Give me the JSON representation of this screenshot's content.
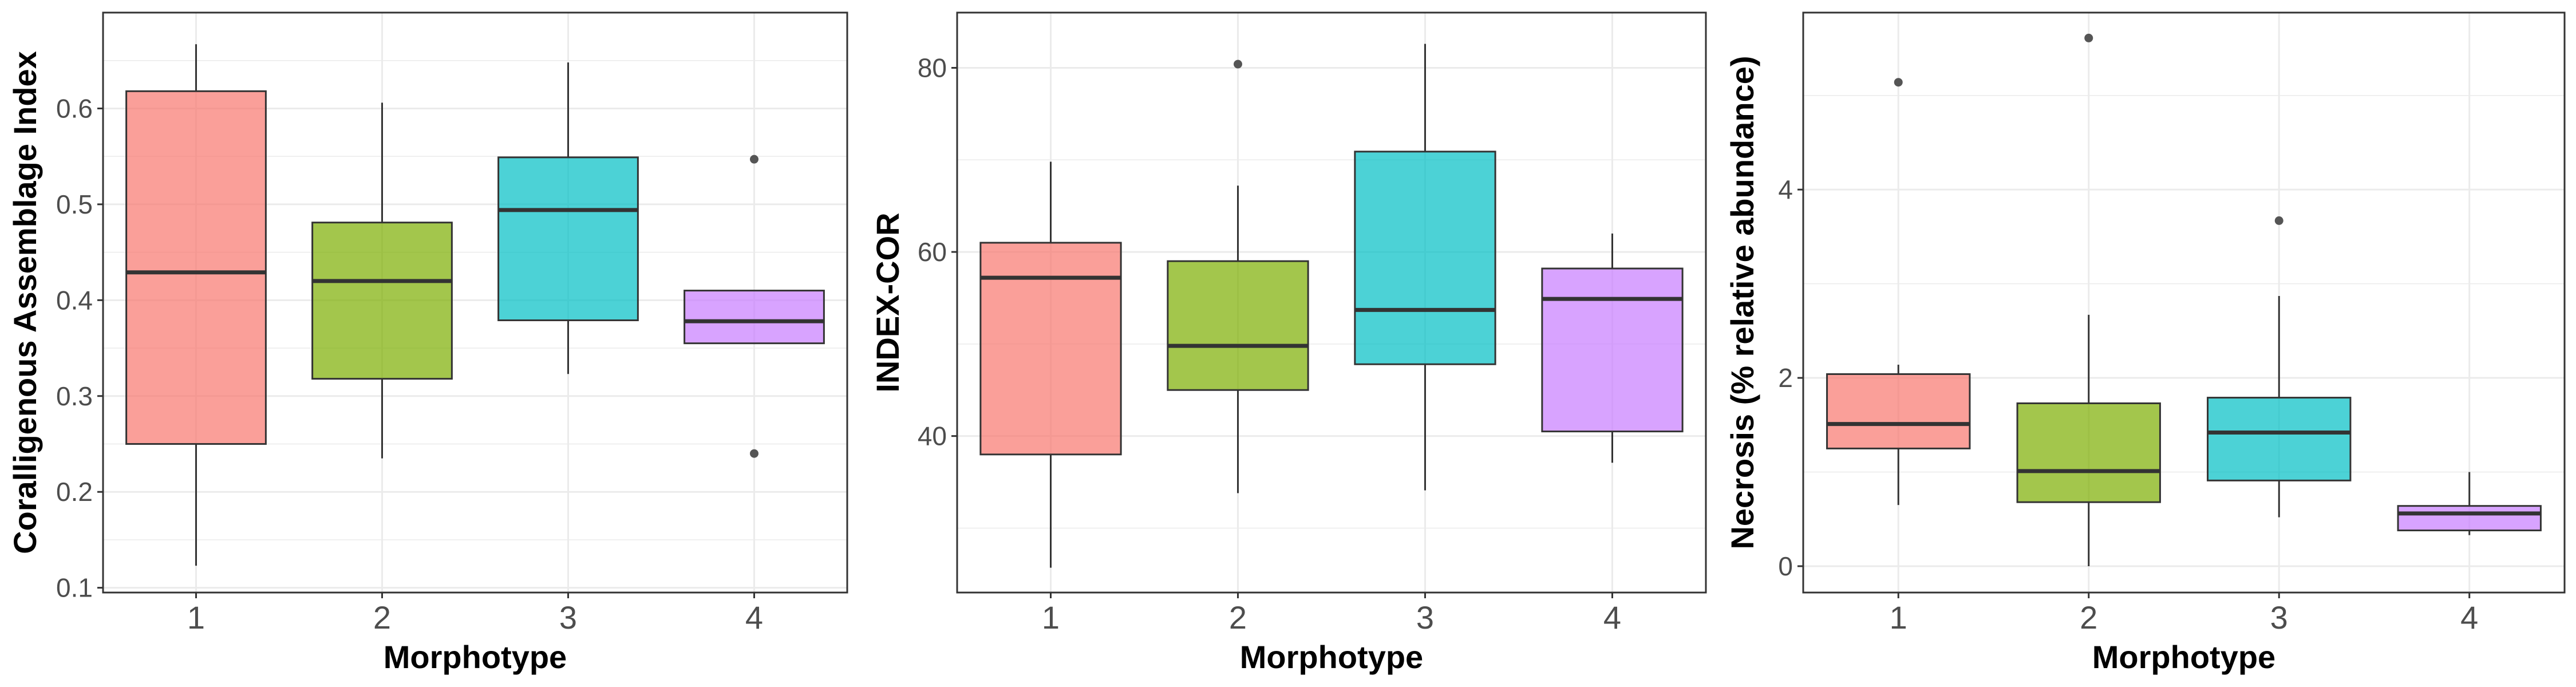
{
  "colors": {
    "1": "#F8766D",
    "2": "#7CAE00",
    "3": "#00BFC4",
    "4": "#C77CFF",
    "panel_border": "#333333",
    "grid": "#ebebeb",
    "median": "#333333",
    "outlier": "#555555"
  },
  "chart_data": [
    {
      "type": "box",
      "xlabel": "Morphotype",
      "ylabel": "Coralligenous Assemblage Index",
      "categories": [
        "1",
        "2",
        "3",
        "4"
      ],
      "ylim": [
        0.095,
        0.7
      ],
      "yticks": [
        0.1,
        0.2,
        0.3,
        0.4,
        0.5,
        0.6
      ],
      "ytick_labels": [
        "0.1",
        "0.2",
        "0.3",
        "0.4",
        "0.5",
        "0.6"
      ],
      "grid": true,
      "boxes": [
        {
          "category": "1",
          "whisker_low": 0.123,
          "q1": 0.25,
          "median": 0.429,
          "q3": 0.618,
          "whisker_high": 0.667,
          "outliers": []
        },
        {
          "category": "2",
          "whisker_low": 0.235,
          "q1": 0.318,
          "median": 0.42,
          "q3": 0.481,
          "whisker_high": 0.606,
          "outliers": []
        },
        {
          "category": "3",
          "whisker_low": 0.323,
          "q1": 0.379,
          "median": 0.494,
          "q3": 0.549,
          "whisker_high": 0.648,
          "outliers": []
        },
        {
          "category": "4",
          "whisker_low": 0.355,
          "q1": 0.355,
          "median": 0.378,
          "q3": 0.41,
          "whisker_high": 0.41,
          "outliers": [
            0.547,
            0.24
          ]
        }
      ]
    },
    {
      "type": "box",
      "xlabel": "Morphotype",
      "ylabel": "INDEX-COR",
      "categories": [
        "1",
        "2",
        "3",
        "4"
      ],
      "ylim": [
        23,
        86
      ],
      "yticks": [
        40,
        60,
        80
      ],
      "ytick_labels": [
        "40",
        "60",
        "80"
      ],
      "grid": true,
      "boxes": [
        {
          "category": "1",
          "whisker_low": 25.7,
          "q1": 38,
          "median": 57.2,
          "q3": 61,
          "whisker_high": 69.8,
          "outliers": []
        },
        {
          "category": "2",
          "whisker_low": 33.8,
          "q1": 45,
          "median": 49.8,
          "q3": 59,
          "whisker_high": 67.2,
          "outliers": [
            80.4
          ]
        },
        {
          "category": "3",
          "whisker_low": 34.1,
          "q1": 47.8,
          "median": 53.7,
          "q3": 70.9,
          "whisker_high": 82.6,
          "outliers": []
        },
        {
          "category": "4",
          "whisker_low": 37.1,
          "q1": 40.5,
          "median": 54.9,
          "q3": 58.2,
          "whisker_high": 62,
          "outliers": []
        }
      ]
    },
    {
      "type": "box",
      "xlabel": "Morphotype",
      "ylabel": "Necrosis (% relative abundance)",
      "categories": [
        "1",
        "2",
        "3",
        "4"
      ],
      "ylim": [
        -0.28,
        5.88
      ],
      "yticks": [
        0,
        2,
        4
      ],
      "ytick_labels": [
        "0",
        "2",
        "4"
      ],
      "grid": true,
      "boxes": [
        {
          "category": "1",
          "whisker_low": 0.65,
          "q1": 1.25,
          "median": 1.51,
          "q3": 2.04,
          "whisker_high": 2.14,
          "outliers": [
            5.14
          ]
        },
        {
          "category": "2",
          "whisker_low": 0,
          "q1": 0.68,
          "median": 1.01,
          "q3": 1.73,
          "whisker_high": 2.67,
          "outliers": [
            5.61
          ]
        },
        {
          "category": "3",
          "whisker_low": 0.52,
          "q1": 0.91,
          "median": 1.42,
          "q3": 1.79,
          "whisker_high": 2.87,
          "outliers": [
            3.67
          ]
        },
        {
          "category": "4",
          "whisker_low": 0.33,
          "q1": 0.38,
          "median": 0.56,
          "q3": 0.64,
          "whisker_high": 1.0,
          "outliers": []
        }
      ]
    }
  ]
}
